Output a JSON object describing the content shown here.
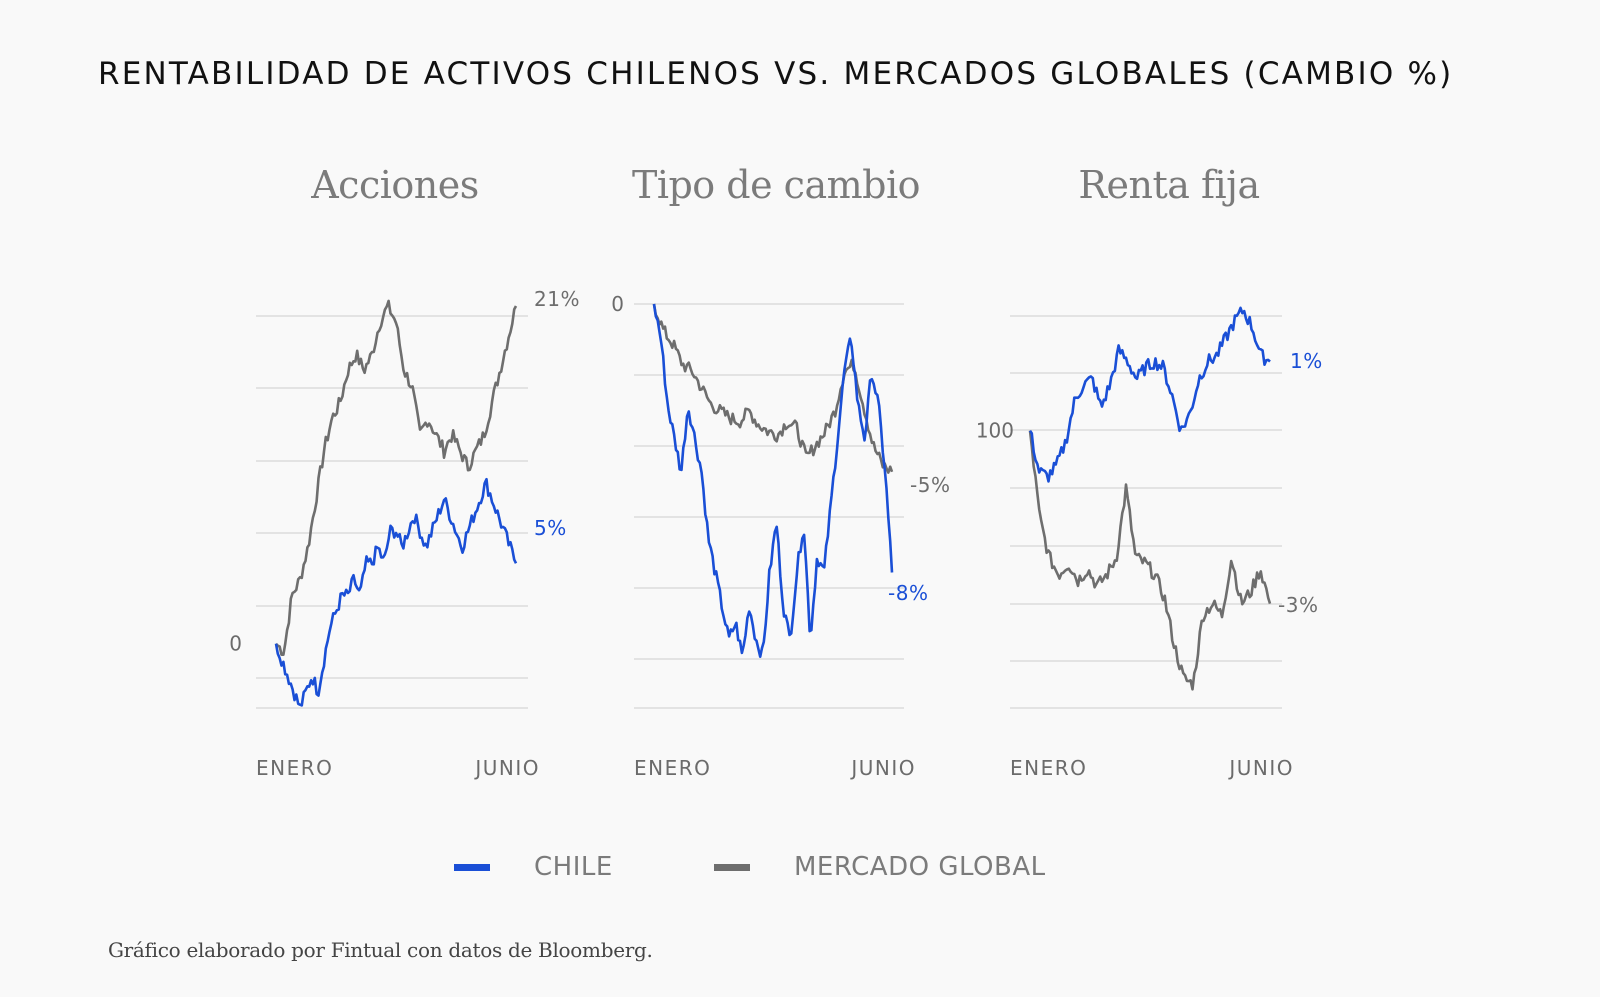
{
  "title": "RENTABILIDAD DE ACTIVOS CHILENOS VS. MERCADOS GLOBALES (CAMBIO %)",
  "colors": {
    "chile": "#1a4fd6",
    "global": "#6e6e6e",
    "grid": "#d6d6d6"
  },
  "legend": [
    {
      "label": "CHILE",
      "color": "#1a4fd6"
    },
    {
      "label": "MERCADO GLOBAL",
      "color": "#6e6e6e"
    }
  ],
  "footnote": "Gráfico elaborado por Fintual con datos de Bloomberg.",
  "chart_data": [
    {
      "type": "line",
      "title": "Acciones",
      "x_tick_labels": [
        "ENERO",
        "JUNIO"
      ],
      "y_tick_label": "0",
      "end_labels": {
        "chile": "5%",
        "global": "21%"
      },
      "series": [
        {
          "name": "CHILE",
          "end_label": "5%",
          "values": [
            0,
            -1,
            -2,
            -3,
            -4,
            -3,
            -2,
            -3,
            -1,
            1,
            2,
            3,
            3,
            4,
            3,
            5,
            5,
            6,
            5,
            7,
            7,
            6,
            7,
            8,
            7,
            6,
            7,
            8,
            9,
            8,
            7,
            6,
            7,
            8,
            9,
            10,
            9,
            8,
            7,
            6,
            5
          ]
        },
        {
          "name": "MERCADO GLOBAL",
          "end_label": "21%",
          "values": [
            0,
            -0.5,
            3,
            4,
            6,
            9,
            12,
            14,
            15,
            17,
            18,
            17,
            18,
            20,
            21,
            20,
            17,
            16,
            13,
            14,
            13,
            12,
            13,
            12,
            11,
            12,
            13,
            15,
            17,
            19,
            21
          ]
        }
      ],
      "ylim": [
        -3.5,
        21.5
      ]
    },
    {
      "type": "line",
      "title": "Tipo de cambio",
      "x_tick_labels": [
        "ENERO",
        "JUNIO"
      ],
      "y_tick_label": "0",
      "end_labels": {
        "chile": "-8%",
        "global": "-5%"
      },
      "series": [
        {
          "name": "CHILE",
          "end_label": "-8%",
          "values": [
            0,
            -1,
            -3,
            -4,
            -5,
            -3,
            -4,
            -5,
            -7,
            -8,
            -9,
            -10,
            -9.5,
            -10.5,
            -9,
            -10,
            -10.5,
            -8,
            -6.5,
            -9,
            -10,
            -8,
            -6.5,
            -10,
            -7.5,
            -8,
            -6,
            -4,
            -2,
            -1,
            -3,
            -4,
            -2,
            -3,
            -5,
            -8
          ]
        },
        {
          "name": "MERCADO GLOBAL",
          "end_label": "-5%",
          "values": [
            0,
            -0.8,
            -1.2,
            -1.8,
            -2,
            -2.5,
            -3,
            -3.2,
            -3.4,
            -3.5,
            -3.2,
            -3.6,
            -3.8,
            -3.9,
            -3.5,
            -3.7,
            -4.6,
            -4.2,
            -3.8,
            -3.2,
            -2,
            -1.8,
            -3,
            -4.2,
            -4.8,
            -5
          ]
        }
      ],
      "ylim": [
        -11.5,
        0
      ]
    },
    {
      "type": "line",
      "title": "Renta fija",
      "x_tick_labels": [
        "ENERO",
        "JUNIO"
      ],
      "y_tick_label": "100",
      "end_labels": {
        "chile": "1%",
        "global": "-3%"
      },
      "series": [
        {
          "name": "CHILE",
          "end_label": "1%",
          "values": [
            0,
            -0.7,
            -0.8,
            -0.6,
            -0.2,
            0.5,
            0.8,
            0.9,
            0.4,
            0.8,
            1.4,
            1.2,
            0.9,
            1.1,
            1.2,
            1.1,
            0.6,
            0,
            0.3,
            0.9,
            1.2,
            1.3,
            1.6,
            1.9,
            2.1,
            1.8,
            1.3,
            1.2
          ]
        },
        {
          "name": "MERCADO GLOBAL",
          "end_label": "-3%",
          "values": [
            0,
            -1.5,
            -2.2,
            -2.5,
            -2.3,
            -2.6,
            -2.4,
            -2.7,
            -2.5,
            -2.2,
            -1,
            -2.2,
            -2.3,
            -2.5,
            -2.9,
            -3.7,
            -4.3,
            -4.4,
            -3.2,
            -3,
            -3.2,
            -2.2,
            -3,
            -2.8,
            -2.4,
            -3
          ]
        }
      ],
      "ylim": [
        -4.5,
        2.2
      ]
    }
  ]
}
